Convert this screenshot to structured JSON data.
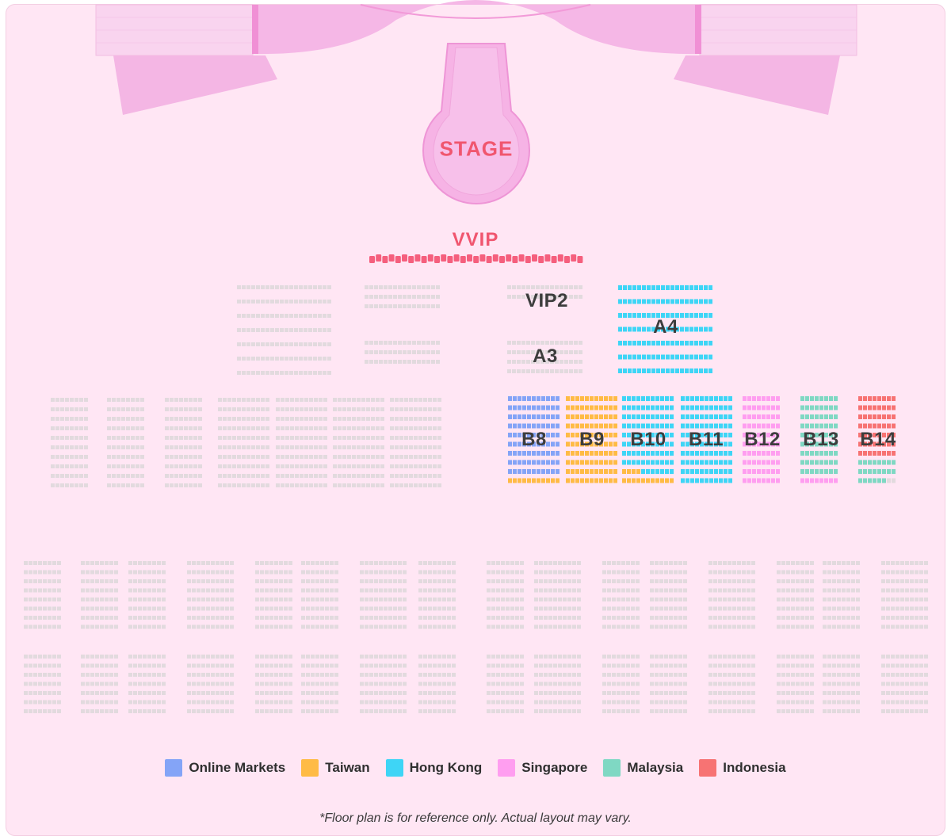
{
  "stage": {
    "label": "STAGE"
  },
  "vvip": {
    "label": "VVIP"
  },
  "section_labels": {
    "vip2": "VIP2",
    "a3": "A3",
    "a4": "A4",
    "b8": "B8",
    "b9": "B9",
    "b10": "B10",
    "b11": "B11",
    "b12": "B12",
    "b13": "B13",
    "b14": "B14"
  },
  "legend": [
    {
      "label": "Online Markets",
      "color": "#84a4f7"
    },
    {
      "label": "Taiwan",
      "color": "#ffbb45"
    },
    {
      "label": "Hong Kong",
      "color": "#3ed5f6"
    },
    {
      "label": "Singapore",
      "color": "#ff9ef0"
    },
    {
      "label": "Malaysia",
      "color": "#7fd8c3"
    },
    {
      "label": "Indonesia",
      "color": "#f77373"
    }
  ],
  "note": "*Floor plan is for reference only. Actual layout may vary.",
  "colors": {
    "background": "#ffe6f4",
    "unassigned_seat": "#e2dade",
    "stage_fill": "#f7b1e4",
    "vvip_seat": "#f55f7d",
    "label_dark": "#3d3d3d"
  }
}
